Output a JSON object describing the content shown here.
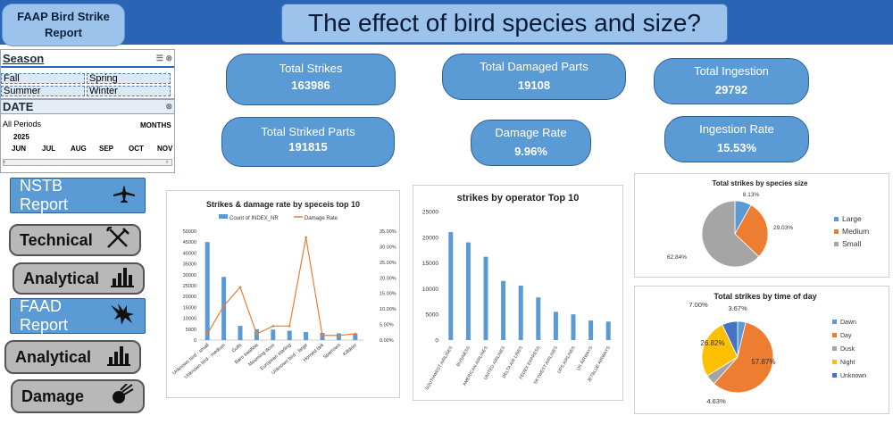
{
  "header": {
    "report_title": "FAAP Bird Strike Report",
    "main_title": "The effect of  bird species and size?"
  },
  "season_slicer": {
    "title": "Season",
    "items": [
      "Fall",
      "Spring",
      "Summer",
      "Winter"
    ]
  },
  "date_slicer": {
    "title": "DATE",
    "period_label": "All Periods",
    "unit": "MONTHS",
    "year": "2025",
    "months": [
      "JUN",
      "JUL",
      "AUG",
      "SEP",
      "OCT",
      "NOV"
    ]
  },
  "kpis": {
    "total_strikes": {
      "label": "Total Strikes",
      "value": "163986"
    },
    "total_damaged_parts": {
      "label": "Total Damaged Parts",
      "value": "19108"
    },
    "total_ingestion": {
      "label": "Total Ingestion",
      "value": "29792"
    },
    "total_striked_parts": {
      "label": "Total Striked Parts",
      "value": "191815"
    },
    "damage_rate": {
      "label": "Damage Rate",
      "value": "9.96%"
    },
    "ingestion_rate": {
      "label": "Ingestion Rate",
      "value": "15.53%"
    }
  },
  "nav": {
    "nstb_report": "NSTB Report",
    "technical": "Technical",
    "analytical_1": "Analytical",
    "faad_report": "FAAD Report",
    "analytical_2": "Analytical",
    "damage": "Damage"
  },
  "chart_data": [
    {
      "type": "bar",
      "title": "Strikes & damage rate by speceis top 10",
      "categories": [
        "Unknown bird - small",
        "Unknown bird - medium",
        "Gulls",
        "Barn swallow",
        "Mourning dove",
        "European starling",
        "Unknown bird - large",
        "Horned lark",
        "Sparrows",
        "Killdeer"
      ],
      "series": [
        {
          "name": "Count of INDEX_NR",
          "kind": "bar",
          "axis": "left",
          "values": [
            45000,
            29000,
            6500,
            5000,
            4800,
            4300,
            3700,
            3300,
            3100,
            3000
          ]
        },
        {
          "name": "Damage Rate",
          "kind": "line",
          "axis": "right",
          "values": [
            2.0,
            11.0,
            17.0,
            2.0,
            4.5,
            4.5,
            33.0,
            1.5,
            1.5,
            2.0
          ]
        }
      ],
      "ylim": [
        0,
        50000
      ],
      "y_ticks": [
        "0",
        "5000",
        "10000",
        "15000",
        "20000",
        "25000",
        "30000",
        "35000",
        "40000",
        "45000",
        "50000"
      ],
      "y2lim": [
        0,
        35
      ],
      "y2_ticks": [
        "0.00%",
        "5.00%",
        "10.00%",
        "15.00%",
        "20.00%",
        "25.00%",
        "30.00%",
        "35.00%"
      ],
      "colors": {
        "bar": "#5b9bd5",
        "line": "#ed7d31"
      }
    },
    {
      "type": "bar",
      "title": "strikes by operator Top 10",
      "categories": [
        "SOUTHWEST AIRLINES",
        "BUSINESS",
        "AMERICAN AIRLINES",
        "UNITED AIRLINES",
        "DELTA AIR LINES",
        "FEDEX EXPRESS",
        "SKYWEST AIRLINES",
        "UPS AIRLINES",
        "US AIRWAYS",
        "JETBLUE AIRWAYS"
      ],
      "values": [
        21000,
        19000,
        16200,
        11500,
        10600,
        8300,
        5500,
        5000,
        3800,
        3600
      ],
      "ylim": [
        0,
        25000
      ],
      "y_ticks": [
        "0",
        "5000",
        "10000",
        "15000",
        "20000",
        "25000"
      ],
      "colors": {
        "bar": "#5b9bd5"
      }
    },
    {
      "type": "pie",
      "title": "Total strikes by species size",
      "labels": [
        "Large",
        "Medium",
        "Small"
      ],
      "values": [
        8.13,
        29.03,
        62.84
      ],
      "value_labels": [
        "8.13%",
        "29.03%",
        "62.84%"
      ],
      "colors": [
        "#5b9bd5",
        "#ed7d31",
        "#a5a5a5"
      ]
    },
    {
      "type": "pie",
      "title": "Total strikes by time of day",
      "labels": [
        "Dawn",
        "Day",
        "Dusk",
        "Night",
        "Unknown"
      ],
      "values": [
        3.67,
        57.87,
        4.63,
        26.82,
        7.0
      ],
      "value_labels": [
        "3.67%",
        "57.87%",
        "4.63%",
        "26.82%",
        "7.00%"
      ],
      "colors": [
        "#5b9bd5",
        "#ed7d31",
        "#a5a5a5",
        "#ffc000",
        "#4472c4"
      ]
    }
  ]
}
